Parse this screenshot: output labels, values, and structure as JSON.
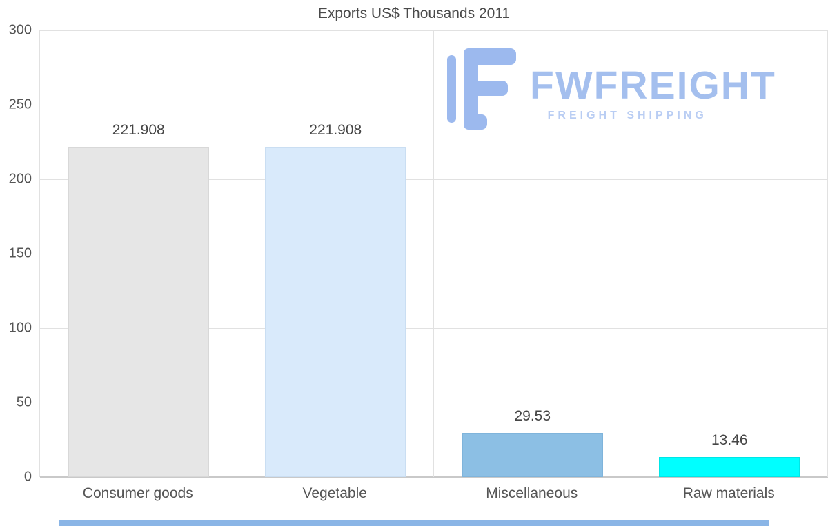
{
  "chart_data": {
    "type": "bar",
    "title": "Exports US$ Thousands 2011",
    "categories": [
      "Consumer goods",
      "Vegetable",
      "Miscellaneous",
      "Raw materials"
    ],
    "values": [
      221.908,
      221.908,
      29.53,
      13.46
    ],
    "value_labels": [
      "221.908",
      "221.908",
      "29.53",
      "13.46"
    ],
    "bar_colors": [
      "#e6e6e6",
      "#d9eafb",
      "#8cbfe4",
      "#00ffff"
    ],
    "bar_border_colors": [
      "#d8d8d8",
      "#cadef2",
      "#7fb4db",
      "#00e6e6"
    ],
    "ylim": [
      0,
      300
    ],
    "yticks": [
      0,
      50,
      100,
      150,
      200,
      250,
      300
    ],
    "grid": true,
    "legend": false,
    "xlabel": "",
    "ylabel": ""
  },
  "watermark": {
    "brand": "FWFREIGHT",
    "tagline": "FREIGHT SHIPPING",
    "icon": "fwfreight-logo-icon",
    "icon_color": "#9cb9ee",
    "brand_color": "#a4bfee",
    "tagline_color": "#b9cdf3"
  },
  "footer": {
    "accent_color": "#8ab5e6"
  }
}
